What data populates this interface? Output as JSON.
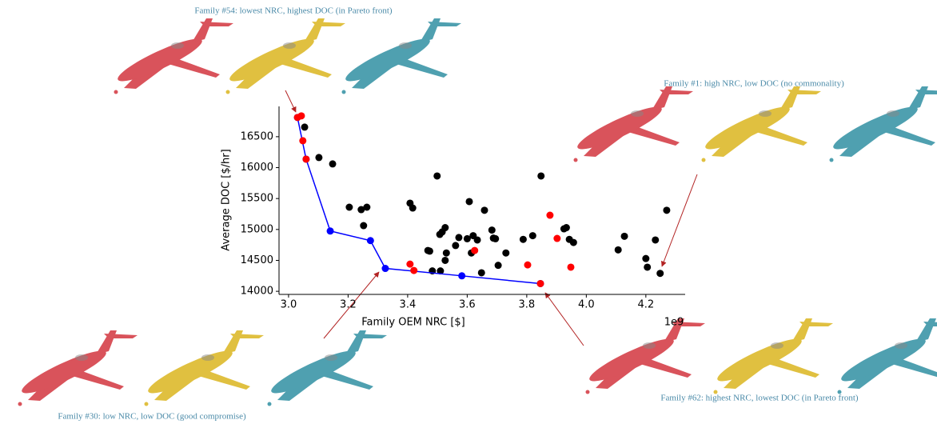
{
  "chart_data": {
    "type": "scatter",
    "x_label": "Family OEM NRC [$]",
    "y_label": "Average DOC [$/hr]",
    "x_offset_label": "1e9",
    "xlim": [
      2.968,
      4.332
    ],
    "ylim": [
      13950,
      16990
    ],
    "xticks": [
      {
        "value": 3.0,
        "label": "3.0"
      },
      3.2,
      3.4,
      3.6,
      3.8,
      {
        "value": 4.0,
        "label": "4.0"
      },
      4.2
    ],
    "yticks": [
      14000,
      14500,
      15000,
      15500,
      16000,
      16500
    ],
    "series": [
      {
        "color": "#000000",
        "x": [
          3.054,
          3.102,
          3.148,
          3.204,
          3.244,
          3.263,
          3.252,
          3.499,
          3.848,
          3.408,
          3.417,
          3.607,
          3.658,
          3.508,
          3.516,
          3.526,
          3.468,
          3.474,
          3.572,
          3.561,
          3.483,
          3.51,
          3.526,
          3.53,
          3.6,
          3.614,
          3.634,
          3.62,
          3.704,
          3.683,
          3.688,
          3.695,
          3.73,
          3.788,
          3.82,
          3.925,
          3.933,
          3.943,
          3.957,
          4.107,
          4.128,
          4.2,
          4.205,
          4.232,
          4.27,
          4.248,
          3.648
        ],
        "values": [
          16655,
          16163,
          16060,
          15360,
          15321,
          15360,
          15062,
          15865,
          15865,
          15425,
          15347,
          15451,
          15310,
          14920,
          14960,
          15030,
          14660,
          14650,
          14870,
          14740,
          14330,
          14330,
          14500,
          14620,
          14850,
          14620,
          14830,
          14900,
          14420,
          14990,
          14860,
          14850,
          14620,
          14840,
          14900,
          15010,
          15030,
          14840,
          14790,
          14670,
          14890,
          14530,
          14390,
          14830,
          15310,
          14290,
          14300
        ]
      },
      {
        "color": "#0000ff",
        "line": true,
        "x": [
          3.03,
          3.059,
          3.14,
          3.275,
          3.325,
          3.582,
          3.846
        ],
        "values": [
          16811,
          16137,
          14975,
          14820,
          14370,
          14250,
          14125
        ]
      },
      {
        "color": "#ff0000",
        "x": [
          3.03,
          3.043,
          3.048,
          3.059,
          3.408,
          3.421,
          3.625,
          3.803,
          3.878,
          3.902,
          3.948,
          3.846
        ],
        "values": [
          16811,
          16837,
          16435,
          16137,
          14440,
          14337,
          14660,
          14427,
          15230,
          14855,
          14390,
          14125
        ]
      }
    ],
    "annotations": [
      {
        "text": "Family #54: lowest NRC, highest DOC (in Pareto front)"
      },
      {
        "text": "Family #1: high NRC, low DOC (no commonality)"
      },
      {
        "text": "Family #30: low NRC, low DOC (good compromise)"
      },
      {
        "text": "Family #62: highest NRC, lowest DOC (in Pareto front)"
      }
    ]
  }
}
